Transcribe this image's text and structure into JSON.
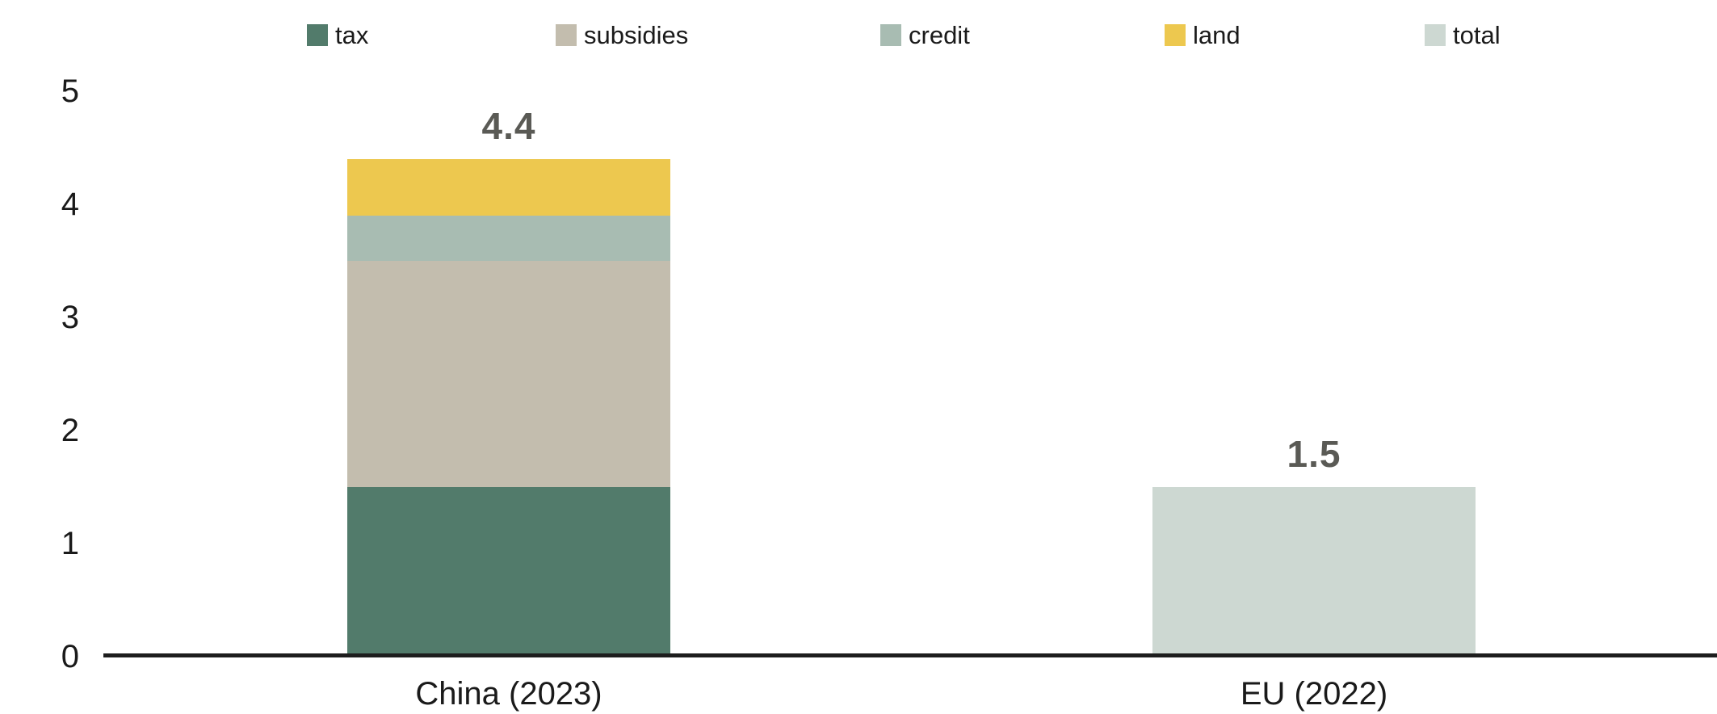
{
  "colors": {
    "tax": "#527b6b",
    "subsidies": "#c3bdae",
    "credit": "#a8bcb2",
    "land": "#edc84f",
    "total": "#cdd8d2",
    "value_label": "#5a5a55",
    "axis_line": "#1d1d1d",
    "text": "#1a1a1a"
  },
  "chart_data": {
    "type": "bar",
    "stacked": true,
    "title": "",
    "xlabel": "",
    "ylabel": "",
    "ylim": [
      0,
      5
    ],
    "yticks": [
      0,
      1,
      2,
      3,
      4,
      5
    ],
    "grid": false,
    "legend_position": "top",
    "categories": [
      "China (2023)",
      "EU (2022)"
    ],
    "series": [
      {
        "name": "tax",
        "color": "#527b6b",
        "values": [
          1.5,
          0
        ]
      },
      {
        "name": "subsidies",
        "color": "#c3bdae",
        "values": [
          2.0,
          0
        ]
      },
      {
        "name": "credit",
        "color": "#a8bcb2",
        "values": [
          0.4,
          0
        ]
      },
      {
        "name": "land",
        "color": "#edc84f",
        "values": [
          0.5,
          0
        ]
      },
      {
        "name": "total",
        "color": "#cdd8d2",
        "values": [
          0,
          1.5
        ]
      }
    ],
    "bar_totals": [
      4.4,
      1.5
    ],
    "total_labels": [
      "4.4",
      "1.5"
    ]
  }
}
